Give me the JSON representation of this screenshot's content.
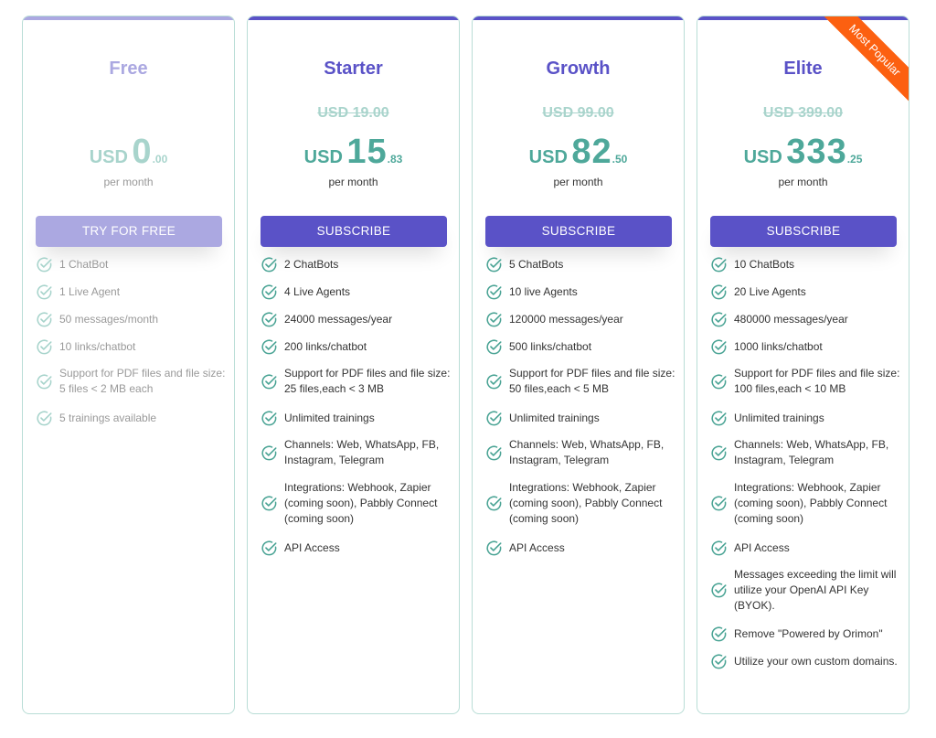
{
  "plans": [
    {
      "name": "Free",
      "original_price": "",
      "currency": "USD",
      "price_int": "0",
      "price_dec": ".00",
      "period": "per month",
      "button": "TRY FOR FREE",
      "features": [
        "1 ChatBot",
        "1 Live Agent",
        "50 messages/month",
        "10 links/chatbot",
        "Support for PDF files and file size: 5 files < 2 MB each",
        "5 trainings available"
      ]
    },
    {
      "name": "Starter",
      "original_price": "USD 19.00",
      "currency": "USD",
      "price_int": "15",
      "price_dec": ".83",
      "period": "per month",
      "button": "SUBSCRIBE",
      "features": [
        "2 ChatBots",
        "4 Live Agents",
        "24000 messages/year",
        "200 links/chatbot",
        "Support for PDF files and file size: 25 files,each < 3 MB",
        "Unlimited trainings",
        "Channels: Web, WhatsApp, FB, Instagram, Telegram",
        "Integrations: Webhook, Zapier (coming soon), Pabbly Connect (coming soon)",
        "API Access"
      ]
    },
    {
      "name": "Growth",
      "original_price": "USD 99.00",
      "currency": "USD",
      "price_int": "82",
      "price_dec": ".50",
      "period": "per month",
      "button": "SUBSCRIBE",
      "features": [
        "5 ChatBots",
        "10 live Agents",
        "120000 messages/year",
        "500 links/chatbot",
        "Support for PDF files and file size: 50 files,each < 5 MB",
        "Unlimited trainings",
        "Channels: Web, WhatsApp, FB, Instagram, Telegram",
        "Integrations: Webhook, Zapier (coming soon), Pabbly Connect (coming soon)",
        "API Access"
      ]
    },
    {
      "name": "Elite",
      "original_price": "USD 399.00",
      "currency": "USD",
      "price_int": "333",
      "price_dec": ".25",
      "period": "per month",
      "button": "SUBSCRIBE",
      "ribbon": "Most Popular",
      "features": [
        "10 ChatBots",
        "20 Live Agents",
        "480000 messages/year",
        "1000 links/chatbot",
        "Support for PDF files and file size: 100 files,each < 10 MB",
        "Unlimited trainings",
        "Channels: Web, WhatsApp, FB, Instagram, Telegram",
        "Integrations: Webhook, Zapier (coming soon), Pabbly Connect (coming soon)",
        "API Access",
        "Messages exceeding the limit will utilize your OpenAI API Key (BYOK).",
        "Remove \"Powered by Orimon\"",
        "Utilize your own custom domains."
      ]
    }
  ],
  "colors": {
    "accent": "#5a52c7",
    "accent_light": "#aba8e1",
    "price_teal": "#4ea89a",
    "check_teal": "#49a394",
    "ribbon": "#fc6010",
    "card_border": "#b9ddd6"
  },
  "icons": {
    "feature": "check-circle-icon"
  }
}
